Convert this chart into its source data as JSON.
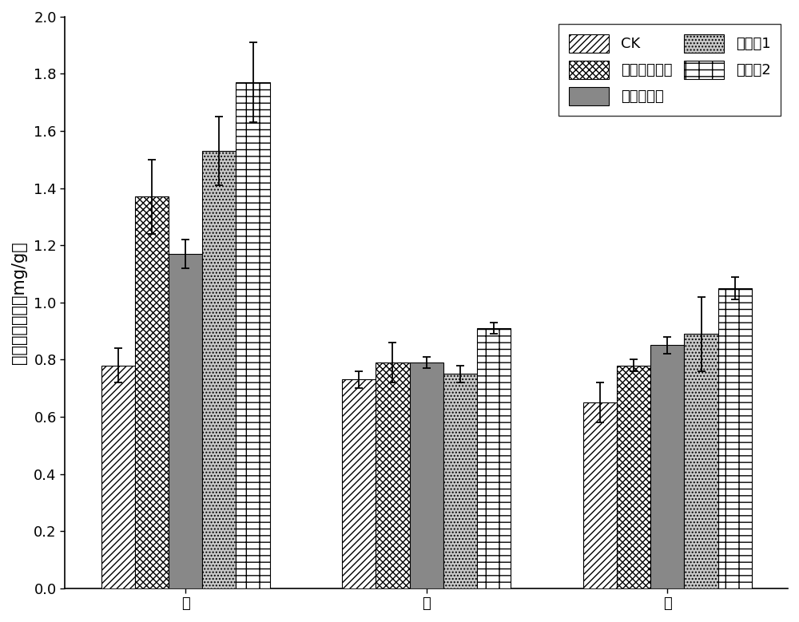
{
  "categories": [
    "根",
    "茎",
    "叶"
  ],
  "series": [
    {
      "label": "CK",
      "hatch": "////",
      "facecolor": "white",
      "edgecolor": "black",
      "values": [
        0.78,
        0.73,
        0.65
      ],
      "errors": [
        0.06,
        0.03,
        0.07
      ]
    },
    {
      "label": "荧光假单胞菌",
      "hatch": "xxxx",
      "facecolor": "white",
      "edgecolor": "black",
      "values": [
        1.37,
        0.79,
        0.78
      ],
      "errors": [
        0.13,
        0.07,
        0.02
      ]
    },
    {
      "label": "地芽孢杆菌",
      "hatch": "",
      "facecolor": "#888888",
      "edgecolor": "black",
      "values": [
        1.17,
        0.79,
        0.85
      ],
      "errors": [
        0.05,
        0.02,
        0.03
      ]
    },
    {
      "label": "复合菌1",
      "hatch": "....",
      "facecolor": "#c8c8c8",
      "edgecolor": "black",
      "values": [
        1.53,
        0.75,
        0.89
      ],
      "errors": [
        0.12,
        0.03,
        0.13
      ]
    },
    {
      "label": "复合菌2",
      "hatch": "+-",
      "facecolor": "white",
      "edgecolor": "black",
      "values": [
        1.77,
        0.91,
        1.05
      ],
      "errors": [
        0.14,
        0.02,
        0.04
      ]
    }
  ],
  "ylabel": "可溶性糖含量（mg/g）",
  "ylim": [
    0.0,
    2.0
  ],
  "yticks": [
    0.0,
    0.2,
    0.4,
    0.6,
    0.8,
    1.0,
    1.2,
    1.4,
    1.6,
    1.8,
    2.0
  ],
  "bar_width": 0.14,
  "background_color": "white",
  "legend_fontsize": 13,
  "axis_fontsize": 15,
  "tick_fontsize": 13
}
